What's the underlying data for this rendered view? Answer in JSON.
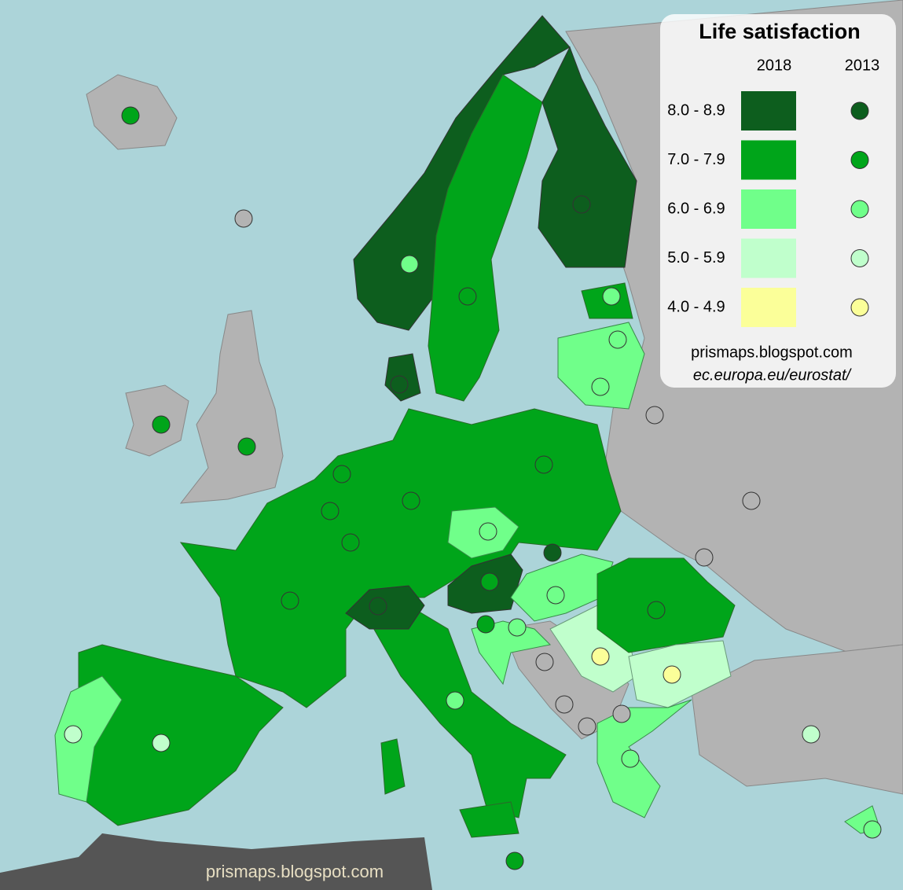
{
  "legend": {
    "title": "Life satisfaction",
    "columns": [
      "2018",
      "2013"
    ],
    "classes": [
      {
        "label": "8.0 - 8.9",
        "color": "#0d5e1e"
      },
      {
        "label": "7.0 - 7.9",
        "color": "#00a51a"
      },
      {
        "label": "6.0 - 6.9",
        "color": "#70ff8a"
      },
      {
        "label": "5.0 - 5.9",
        "color": "#c0ffcc"
      },
      {
        "label": "4.0 - 4.9",
        "color": "#fbff99"
      }
    ],
    "sources": [
      "prismaps.blogspot.com",
      "ec.europa.eu/eurostat/"
    ]
  },
  "watermark": "prismaps.blogspot.com"
}
